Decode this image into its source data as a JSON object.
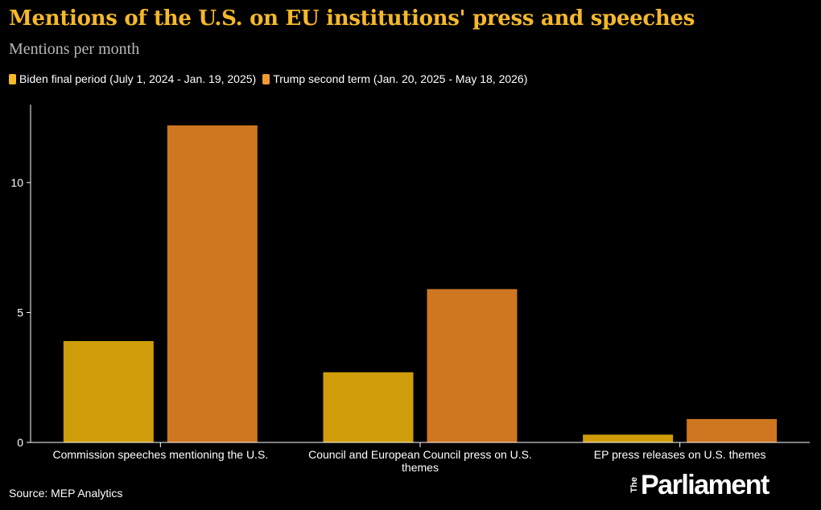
{
  "title": "Mentions of the U.S. on EU institutions' press and speeches",
  "subtitle": "Mentions per month",
  "source": "Source: MEP Analytics",
  "logo": {
    "prefix": "The",
    "name": "Parliament"
  },
  "chart_data": {
    "type": "bar",
    "categories": [
      "Commission speeches mentioning the U.S.",
      "Council and European Council press on U.S. themes",
      "EP press releases on U.S. themes"
    ],
    "category_lines": [
      [
        "Commission speeches mentioning the U.S."
      ],
      [
        "Council and European Council press on U.S.",
        "themes"
      ],
      [
        "EP press releases on U.S. themes"
      ]
    ],
    "series": [
      {
        "name": "Biden final period (July 1, 2024 - Jan. 19, 2025)",
        "color": "#cf9d0a",
        "values": [
          3.9,
          2.7,
          0.3
        ]
      },
      {
        "name": "Trump second term (Jan. 20, 2025 - May 18, 2026)",
        "color": "#cf7620",
        "values": [
          12.2,
          5.9,
          0.9
        ]
      }
    ],
    "legend_colors": [
      "#f5b829",
      "#f09a32"
    ],
    "yticks": [
      0,
      5,
      10
    ],
    "ylim": [
      0,
      13
    ],
    "grid": false,
    "legend": "top-left"
  }
}
